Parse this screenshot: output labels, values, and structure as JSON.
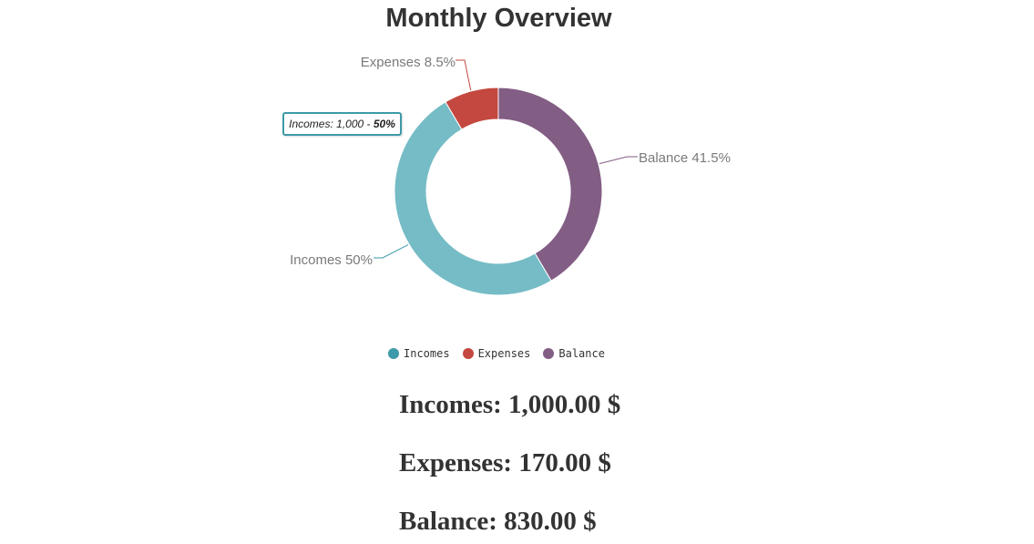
{
  "chart_data": {
    "type": "pie",
    "title": "Monthly Overview",
    "categories": [
      "Incomes",
      "Expenses",
      "Balance"
    ],
    "values": [
      1000,
      170,
      830
    ],
    "percent_labels": [
      "Incomes 50%",
      "Expenses 8.5%",
      "Balance 41.5%"
    ],
    "colors": [
      "#75bcc6",
      "#c4483f",
      "#825d84"
    ],
    "legend_colors": [
      "#3d9aa8",
      "#c4483f",
      "#825d84"
    ],
    "legend": [
      "Incomes",
      "Expenses",
      "Balance"
    ],
    "legend_position": "bottom",
    "donut": true
  },
  "tooltip": {
    "prefix": "Incomes: 1,000 - ",
    "percent": "50%"
  },
  "summary": {
    "incomes": "Incomes: 1,000.00 $",
    "expenses": "Expenses: 170.00 $",
    "balance": "Balance: 830.00 $"
  }
}
